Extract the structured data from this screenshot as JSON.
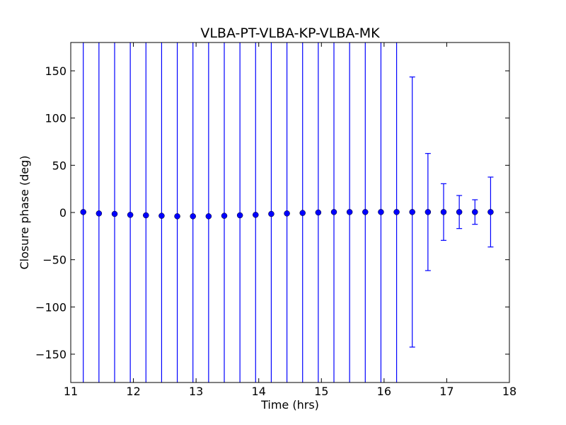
{
  "chart_data": {
    "type": "scatter",
    "title": "VLBA-PT-VLBA-KP-VLBA-MK",
    "xlabel": "Time (hrs)",
    "ylabel": "Closure phase (deg)",
    "xlim": [
      11,
      18
    ],
    "ylim": [
      -180,
      180
    ],
    "xticks": [
      11,
      12,
      13,
      14,
      15,
      16,
      17,
      18
    ],
    "xtick_labels": [
      "11",
      "12",
      "13",
      "14",
      "15",
      "16",
      "17",
      "18"
    ],
    "yticks": [
      -150,
      -100,
      -50,
      0,
      50,
      100,
      150
    ],
    "ytick_labels": [
      "−150",
      "−100",
      "−50",
      "0",
      "50",
      "100",
      "150"
    ],
    "grid": false,
    "color": "#0000ff",
    "points": [
      {
        "x": 11.2,
        "y": 0.5,
        "err": 500
      },
      {
        "x": 11.45,
        "y": -1.0,
        "err": 500
      },
      {
        "x": 11.7,
        "y": -1.5,
        "err": 500
      },
      {
        "x": 11.95,
        "y": -2.5,
        "err": 500
      },
      {
        "x": 12.2,
        "y": -3.0,
        "err": 500
      },
      {
        "x": 12.45,
        "y": -3.5,
        "err": 500
      },
      {
        "x": 12.7,
        "y": -4.0,
        "err": 500
      },
      {
        "x": 12.95,
        "y": -4.0,
        "err": 500
      },
      {
        "x": 13.2,
        "y": -4.0,
        "err": 500
      },
      {
        "x": 13.45,
        "y": -3.5,
        "err": 500
      },
      {
        "x": 13.7,
        "y": -3.0,
        "err": 500
      },
      {
        "x": 13.95,
        "y": -2.5,
        "err": 500
      },
      {
        "x": 14.2,
        "y": -1.5,
        "err": 500
      },
      {
        "x": 14.45,
        "y": -1.0,
        "err": 500
      },
      {
        "x": 14.7,
        "y": -0.5,
        "err": 500
      },
      {
        "x": 14.95,
        "y": 0.0,
        "err": 500
      },
      {
        "x": 15.2,
        "y": 0.5,
        "err": 500
      },
      {
        "x": 15.45,
        "y": 0.5,
        "err": 500
      },
      {
        "x": 15.7,
        "y": 0.5,
        "err": 500
      },
      {
        "x": 15.95,
        "y": 0.5,
        "err": 500
      },
      {
        "x": 16.2,
        "y": 0.5,
        "err": 500
      },
      {
        "x": 16.45,
        "y": 0.5,
        "err": 143
      },
      {
        "x": 16.7,
        "y": 0.5,
        "err": 62
      },
      {
        "x": 16.95,
        "y": 0.5,
        "err": 30
      },
      {
        "x": 17.2,
        "y": 0.5,
        "err": 17.5
      },
      {
        "x": 17.45,
        "y": 0.5,
        "err": 13
      },
      {
        "x": 17.7,
        "y": 0.5,
        "err": 37
      }
    ]
  }
}
